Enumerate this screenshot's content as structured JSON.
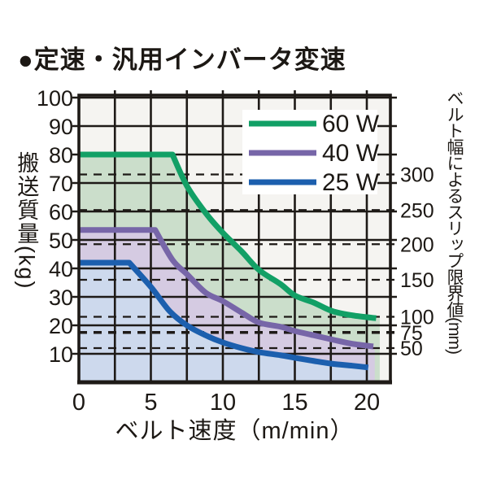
{
  "title": "●定速・汎用インバータ変速",
  "chart_data": {
    "type": "line",
    "title": "●定速・汎用インバータ変速",
    "xlabel": "ベルト速度（m/min）",
    "ylabel_left": "搬送質量(kg)",
    "ylabel_right": "ベルト幅によるスリップ限界値(mm)",
    "xlim": [
      0,
      21.6
    ],
    "ylim": [
      0,
      101
    ],
    "x_ticks": [
      0,
      5,
      10,
      15,
      20
    ],
    "x_grid_step": 2.5,
    "y_ticks": [
      10,
      20,
      30,
      40,
      50,
      60,
      70,
      80,
      90,
      100
    ],
    "grid": "on",
    "legend_position": "top-right",
    "series": [
      {
        "name": "60 W",
        "color": "#12a066",
        "fill": "#cbdecb",
        "flat_value_kg": 80,
        "corner_x": 6.5,
        "fill_end_x": 20.9,
        "points": [
          [
            0,
            80
          ],
          [
            6.5,
            80
          ],
          [
            7.5,
            69
          ],
          [
            8.8,
            59.5
          ],
          [
            10,
            52.5
          ],
          [
            11.3,
            46
          ],
          [
            12.5,
            39.5
          ],
          [
            14,
            34.5
          ],
          [
            15,
            30.5
          ],
          [
            16.3,
            28
          ],
          [
            17.6,
            25
          ],
          [
            19,
            23.5
          ],
          [
            20.65,
            22.5
          ]
        ]
      },
      {
        "name": "40 W",
        "color": "#7766a8",
        "fill": "#d5cbe2",
        "flat_value_kg": 53.5,
        "corner_x": 5.3,
        "fill_end_x": 20.55,
        "points": [
          [
            0,
            53.5
          ],
          [
            5.3,
            53.5
          ],
          [
            6.5,
            43
          ],
          [
            7.5,
            38
          ],
          [
            8.8,
            31.5
          ],
          [
            10,
            28.5
          ],
          [
            11.3,
            24.5
          ],
          [
            12.5,
            21
          ],
          [
            14,
            19.5
          ],
          [
            15,
            18
          ],
          [
            16.3,
            16.5
          ],
          [
            17.6,
            15
          ],
          [
            19,
            13.5
          ],
          [
            20.45,
            12.6
          ]
        ]
      },
      {
        "name": "25 W",
        "color": "#1c5fae",
        "fill": "#cdd9ed",
        "flat_value_kg": 42,
        "corner_x": 3.5,
        "fill_end_x": 20.2,
        "points": [
          [
            0,
            42
          ],
          [
            3.5,
            42
          ],
          [
            5,
            33.5
          ],
          [
            6.3,
            25
          ],
          [
            7.5,
            20
          ],
          [
            8.8,
            16.5
          ],
          [
            10,
            14
          ],
          [
            11.3,
            12
          ],
          [
            12.5,
            10.6
          ],
          [
            14,
            9.5
          ],
          [
            15,
            8.6
          ],
          [
            16.3,
            7.5
          ],
          [
            17.6,
            6.5
          ],
          [
            19,
            5.8
          ],
          [
            20.1,
            5.2
          ]
        ]
      }
    ],
    "slip_limits": [
      {
        "belt_width_mm": "300",
        "load_kg": 73,
        "bold": false
      },
      {
        "belt_width_mm": "250",
        "load_kg": 60.5,
        "bold": false
      },
      {
        "belt_width_mm": "200",
        "load_kg": 48.5,
        "bold": false
      },
      {
        "belt_width_mm": "150",
        "load_kg": 36,
        "bold": false
      },
      {
        "belt_width_mm": "100",
        "load_kg": 23,
        "bold": false
      },
      {
        "belt_width_mm": "75",
        "load_kg": 17.5,
        "bold": true
      },
      {
        "belt_width_mm": "50",
        "load_kg": 12,
        "bold": false
      }
    ]
  },
  "colors": {
    "grid": "#1e1a17",
    "border": "#1e1a17",
    "plot_bg": "#f5f4f1",
    "page_bg": "#ffffff",
    "text": "#1c1814",
    "legend_bg": "#ffffff"
  }
}
